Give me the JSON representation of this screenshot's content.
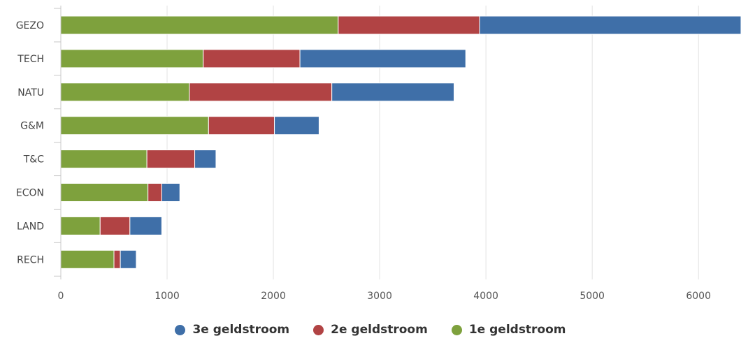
{
  "chart_data": {
    "type": "bar",
    "orientation": "horizontal",
    "stacked": true,
    "categories": [
      "GEZO",
      "TECH",
      "NATU",
      "G&M",
      "T&C",
      "ECON",
      "LAND",
      "RECH"
    ],
    "series": [
      {
        "name": "1e geldstroom",
        "color": "#7ea13d",
        "values": [
          2610,
          1340,
          1210,
          1390,
          810,
          820,
          370,
          500
        ]
      },
      {
        "name": "2e geldstroom",
        "color": "#b14344",
        "values": [
          1330,
          910,
          1340,
          620,
          450,
          130,
          280,
          60
        ]
      },
      {
        "name": "3e geldstroom",
        "color": "#3f6fa8",
        "values": [
          2460,
          1560,
          1150,
          420,
          200,
          170,
          300,
          150
        ]
      }
    ],
    "xlim": [
      0,
      6400
    ],
    "xticks": [
      0,
      1000,
      2000,
      3000,
      4000,
      5000,
      6000
    ],
    "grid": true,
    "legend_position": "bottom",
    "legend_order": [
      "3e geldstroom",
      "2e geldstroom",
      "1e geldstroom"
    ],
    "title": "",
    "xlabel": "",
    "ylabel": ""
  }
}
